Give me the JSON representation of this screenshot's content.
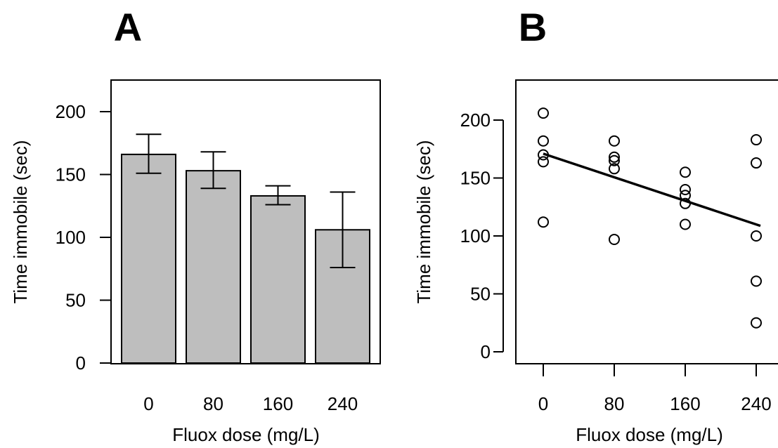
{
  "colors": {
    "bar_fill": "#bebebe",
    "stroke": "#000000",
    "background": "#ffffff"
  },
  "chart_data": [
    {
      "panel": "A",
      "type": "bar",
      "categories": [
        "0",
        "80",
        "160",
        "240"
      ],
      "values": [
        166,
        153,
        133,
        106
      ],
      "error_bars": [
        {
          "low": 151,
          "high": 182
        },
        {
          "low": 139,
          "high": 168
        },
        {
          "low": 126,
          "high": 141
        },
        {
          "low": 76,
          "high": 136
        }
      ],
      "xlabel": "Fluox dose (mg/L)",
      "ylabel": "Time immobile (sec)",
      "yticks": [
        0,
        50,
        100,
        150,
        200
      ],
      "ylim": [
        0,
        225
      ],
      "grid": false,
      "box": true
    },
    {
      "panel": "B",
      "type": "scatter",
      "points": [
        {
          "x": 0,
          "y": 206
        },
        {
          "x": 0,
          "y": 182
        },
        {
          "x": 0,
          "y": 170
        },
        {
          "x": 0,
          "y": 164
        },
        {
          "x": 0,
          "y": 112
        },
        {
          "x": 80,
          "y": 182
        },
        {
          "x": 80,
          "y": 168
        },
        {
          "x": 80,
          "y": 165
        },
        {
          "x": 80,
          "y": 158
        },
        {
          "x": 80,
          "y": 97
        },
        {
          "x": 160,
          "y": 155
        },
        {
          "x": 160,
          "y": 140
        },
        {
          "x": 160,
          "y": 135
        },
        {
          "x": 160,
          "y": 128
        },
        {
          "x": 160,
          "y": 110
        },
        {
          "x": 240,
          "y": 183
        },
        {
          "x": 240,
          "y": 163
        },
        {
          "x": 240,
          "y": 100
        },
        {
          "x": 240,
          "y": 61
        },
        {
          "x": 240,
          "y": 25
        }
      ],
      "fit_line": {
        "x": [
          0,
          240
        ],
        "y": [
          171,
          109
        ]
      },
      "xlabel": "Fluox dose (mg/L)",
      "ylabel": "Time immobile (sec)",
      "xticks": [
        0,
        80,
        160,
        240
      ],
      "yticks": [
        0,
        50,
        100,
        150,
        200
      ],
      "xlim": [
        0,
        240
      ],
      "ylim": [
        0,
        200
      ],
      "grid": false,
      "box": true
    }
  ]
}
